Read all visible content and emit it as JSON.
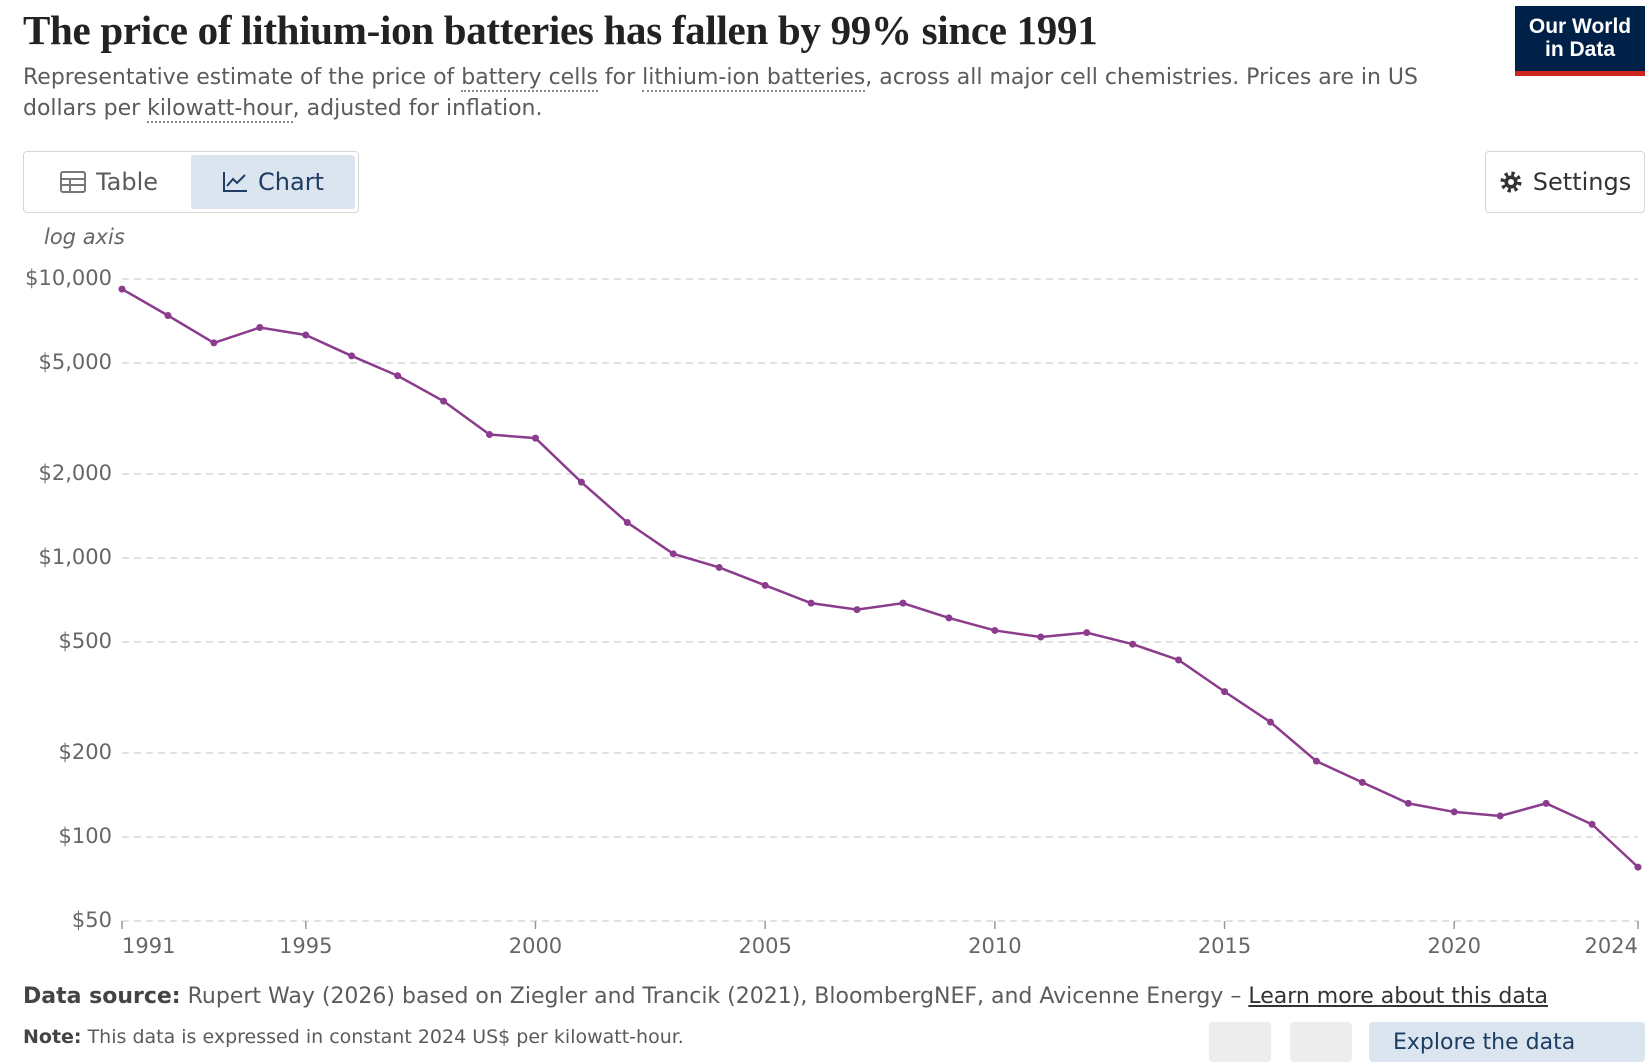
{
  "header": {
    "title": "The price of lithium-ion batteries has fallen by 99% since 1991",
    "subtitle": [
      "Representative estimate of the price of ",
      "battery cells",
      " for ",
      "lithium-ion batteries",
      ", across all major cell chemistries. Prices are in US dollars per ",
      "kilowatt-hour",
      ", adjusted for inflation."
    ],
    "logo": [
      "Our World",
      "in Data"
    ]
  },
  "tabs": [
    "Table",
    "Chart"
  ],
  "settings": "Settings",
  "chart_data": {
    "type": "line",
    "axis_note": "log axis",
    "log_scale": true,
    "grid": true,
    "color": "#8c3c8c",
    "x": [
      1991,
      1992,
      1993,
      1994,
      1995,
      1996,
      1997,
      1998,
      1999,
      2000,
      2001,
      2002,
      2003,
      2004,
      2005,
      2006,
      2007,
      2008,
      2009,
      2010,
      2011,
      2012,
      2013,
      2014,
      2015,
      2016,
      2017,
      2018,
      2019,
      2020,
      2021,
      2022,
      2023,
      2024
    ],
    "values": [
      9200,
      7400,
      5900,
      6700,
      6300,
      5300,
      4500,
      3650,
      2770,
      2690,
      1870,
      1340,
      1035,
      925,
      798,
      689,
      653,
      689,
      610,
      550,
      521,
      540,
      491,
      431,
      332,
      258,
      187,
      157,
      132,
      123,
      119,
      132,
      111,
      78
    ],
    "xlim": [
      1991,
      2024
    ],
    "xticks": [
      1991,
      1995,
      2000,
      2005,
      2010,
      2015,
      2020,
      2024
    ],
    "ylim": [
      50,
      10000
    ],
    "yticks": [
      {
        "value": 50,
        "label": "$50"
      },
      {
        "value": 100,
        "label": "$100"
      },
      {
        "value": 200,
        "label": "$200"
      },
      {
        "value": 500,
        "label": "$500"
      },
      {
        "value": 1000,
        "label": "$1,000"
      },
      {
        "value": 2000,
        "label": "$2,000"
      },
      {
        "value": 5000,
        "label": "$5,000"
      },
      {
        "value": 10000,
        "label": "$10,000"
      }
    ]
  },
  "footer": {
    "source_label": "Data source:",
    "source": "Rupert Way (2026) based on Ziegler and Trancik (2021), BloombergNEF, and Avicenne Energy – ",
    "learn_more": "Learn more about this data",
    "note_label": "Note:",
    "note": "This data is expressed in constant 2024 US$ per kilowatt-hour.",
    "explore": "Explore the data"
  }
}
